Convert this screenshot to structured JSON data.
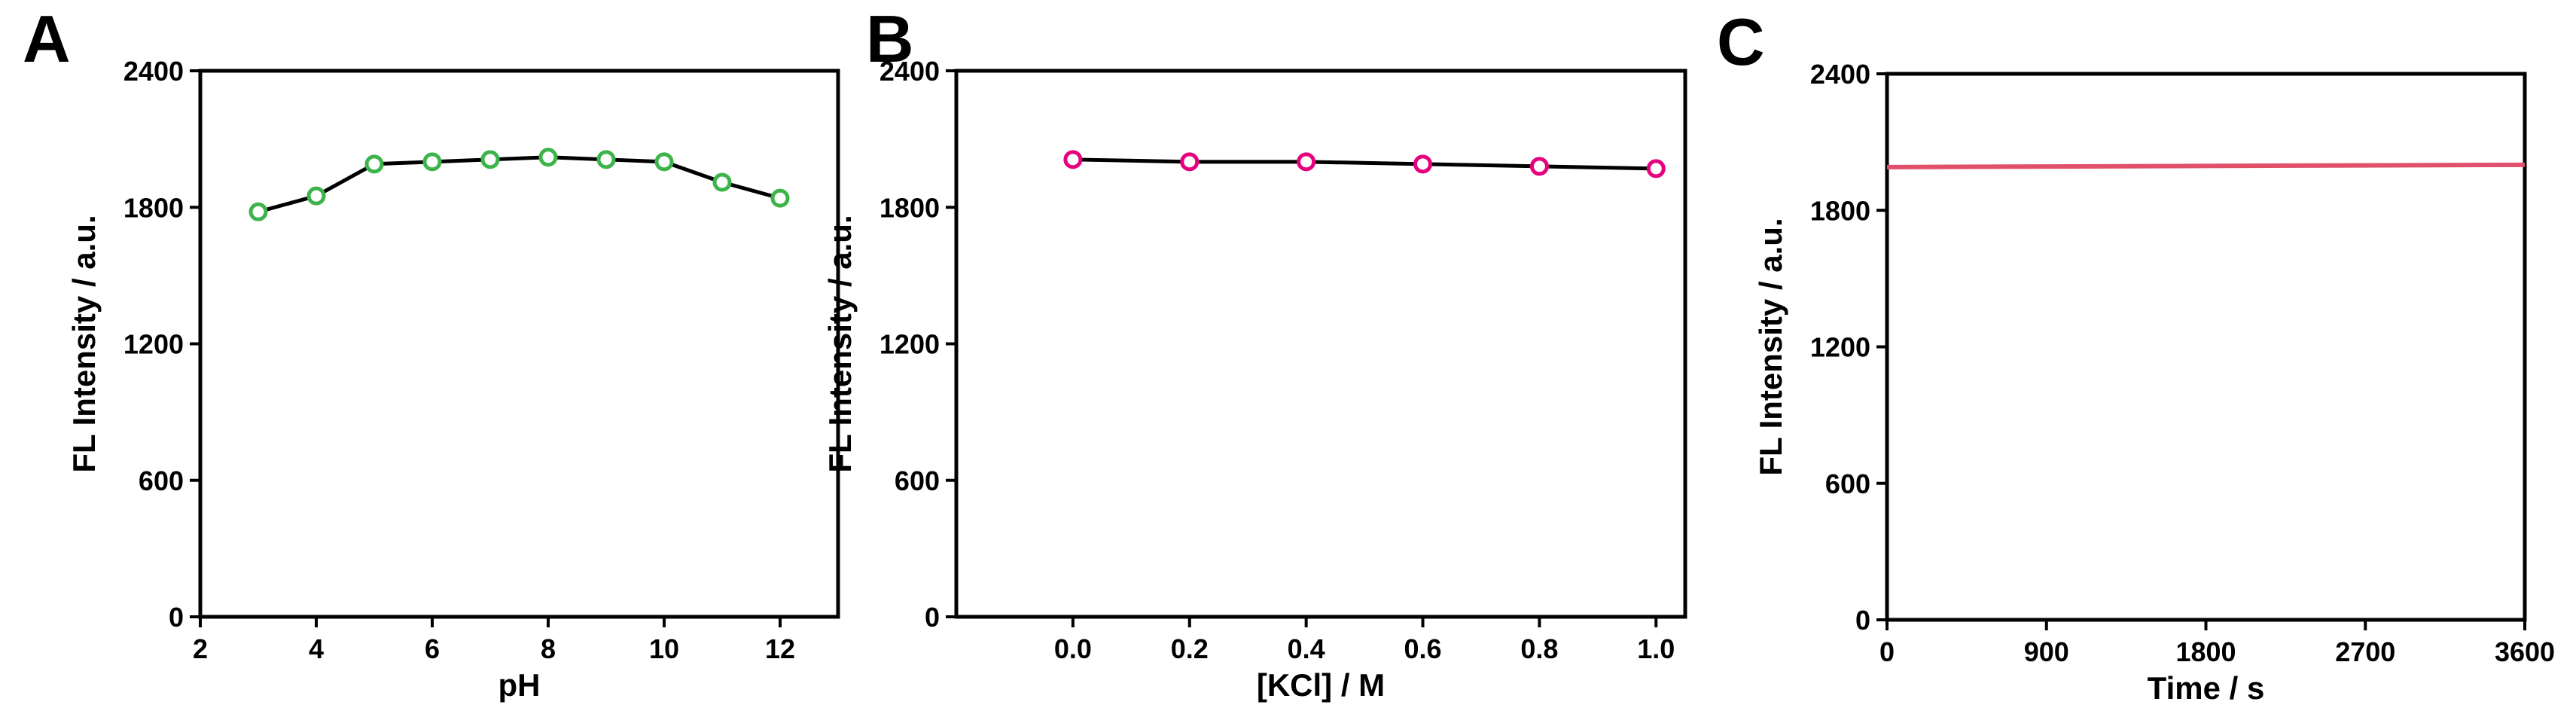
{
  "chart_data": [
    {
      "type": "line",
      "label": "A",
      "xlabel": "pH",
      "ylabel": "FL Intensity / a.u.",
      "x": [
        3,
        4,
        5,
        6,
        7,
        8,
        9,
        10,
        11,
        12
      ],
      "values": [
        1780,
        1850,
        1990,
        2000,
        2010,
        2020,
        2010,
        2000,
        1910,
        1840
      ],
      "line_color": "#000000",
      "marker_color": "#3cb44b",
      "marker": "open-circle",
      "xlim": [
        2,
        13
      ],
      "xticks": [
        2,
        4,
        6,
        8,
        10,
        12
      ],
      "ylim": [
        0,
        2400
      ],
      "yticks": [
        0,
        600,
        1200,
        1800,
        2400
      ]
    },
    {
      "type": "line",
      "label": "B",
      "xlabel": "[KCl] / M",
      "ylabel": "FL Intensity / a.u.",
      "x": [
        0,
        0.2,
        0.4,
        0.6,
        0.8,
        1.0
      ],
      "values": [
        2010,
        2000,
        2000,
        1990,
        1980,
        1970
      ],
      "line_color": "#000000",
      "marker_color": "#e6007e",
      "marker": "open-circle",
      "xlim": [
        -0.2,
        1.05
      ],
      "xticks": [
        {
          "value": 0,
          "label": "0.0"
        },
        {
          "value": 0.2,
          "label": "0.2"
        },
        {
          "value": 0.4,
          "label": "0.4"
        },
        {
          "value": 0.6,
          "label": "0.6"
        },
        {
          "value": 0.8,
          "label": "0.8"
        },
        {
          "value": 1,
          "label": "1.0"
        }
      ],
      "ylim": [
        0,
        2400
      ],
      "yticks": [
        0,
        600,
        1200,
        1800,
        2400
      ]
    },
    {
      "type": "line",
      "label": "C",
      "xlabel": "Time / s",
      "ylabel": "FL Intensity / a.u.",
      "x": [
        0,
        3600
      ],
      "values": [
        1990,
        2000
      ],
      "line_color": "#e0506a",
      "marker": "none",
      "xlim": [
        0,
        3600
      ],
      "xticks": [
        0,
        900,
        1800,
        2700,
        3600
      ],
      "ylim": [
        0,
        2400
      ],
      "yticks": [
        0,
        600,
        1200,
        1800,
        2400
      ]
    }
  ]
}
